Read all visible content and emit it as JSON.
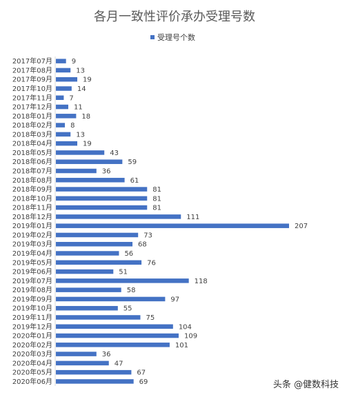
{
  "watermark": "头条 @健数科技",
  "colors": {
    "bar": "#4472C4",
    "text": "#404040",
    "title": "#595959",
    "axis": "#D9D9D9"
  },
  "chart_data": {
    "type": "bar",
    "orientation": "horizontal",
    "title": "各月一致性评价承办受理号数",
    "legend": {
      "position": "top",
      "entries": [
        "受理号个数"
      ]
    },
    "xlim": [
      0,
      220
    ],
    "grid": false,
    "categories": [
      "2017年07月",
      "2017年08月",
      "2017年09月",
      "2017年10月",
      "2017年11月",
      "2017年12月",
      "2018年01月",
      "2018年02月",
      "2018年03月",
      "2018年04月",
      "2018年05月",
      "2018年06月",
      "2018年07月",
      "2018年08月",
      "2018年09月",
      "2018年10月",
      "2018年11月",
      "2018年12月",
      "2019年01月",
      "2019年02月",
      "2019年03月",
      "2019年04月",
      "2019年05月",
      "2019年06月",
      "2019年07月",
      "2019年08月",
      "2019年09月",
      "2019年10月",
      "2019年11月",
      "2019年12月",
      "2020年01月",
      "2020年02月",
      "2020年03月",
      "2020年04月",
      "2020年05月",
      "2020年06月"
    ],
    "series": [
      {
        "name": "受理号个数",
        "values": [
          9,
          13,
          19,
          14,
          7,
          11,
          18,
          8,
          13,
          19,
          43,
          59,
          36,
          61,
          81,
          81,
          81,
          111,
          207,
          73,
          68,
          56,
          76,
          51,
          118,
          58,
          97,
          55,
          75,
          104,
          109,
          101,
          36,
          47,
          67,
          69
        ]
      }
    ],
    "data_labels": true
  }
}
